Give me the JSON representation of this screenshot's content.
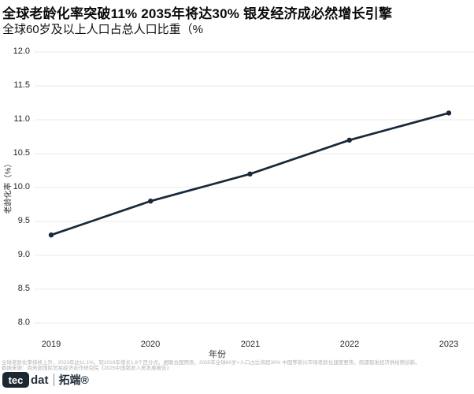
{
  "chart_data": {
    "type": "line",
    "title": "全球老龄化率突破11% 2035年将达30% 银发经济成必然增长引擎",
    "subtitle": "全球60岁及以上人口占总人口比重（%",
    "categories": [
      "2019",
      "2020",
      "2021",
      "2022",
      "2023"
    ],
    "values": [
      9.3,
      9.8,
      10.2,
      10.7,
      11.1
    ],
    "xlabel": "年份",
    "ylabel": "老龄化率（%）",
    "ylim": [
      8.0,
      12.0
    ],
    "ytick_labels": [
      "12.0",
      "11.5",
      "11.0",
      "10.5",
      "10.0",
      "9.5",
      "9.0",
      "8.5",
      "8.0"
    ],
    "grid": true,
    "legend": "none",
    "line_color": "#17293a",
    "marker": "circle",
    "gridline_color": "#eaeaea"
  },
  "footer": {
    "note_line1": "全球老龄化率持续上升，2023年达11.1%，较2019年增长1.8个百分点。据联合国预测，2035年全球60岁+人口占比将超30% 中国等新兴市场老龄化速度更快，倒逼银发经济供给侧创新。",
    "source_line": "数据来源：商务部国际贸易经济合作研究院《2025中国银发人居发展报告》",
    "logo": {
      "badge": "tec",
      "suffix": "dat",
      "brand": "拓端®"
    }
  }
}
